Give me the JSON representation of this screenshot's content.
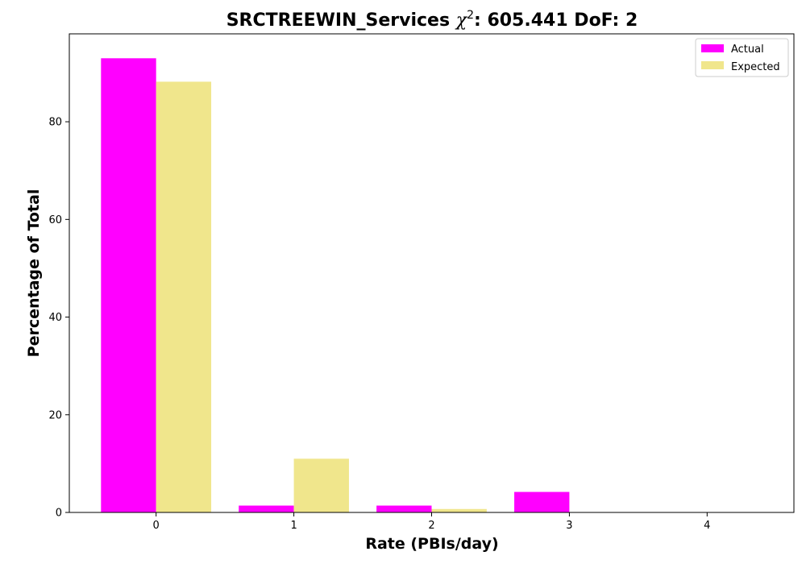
{
  "chart_data": {
    "type": "bar",
    "title_main": "SRCTREEWIN_Services ",
    "title_chi": "χ",
    "title_sup": "2",
    "title_rest": ": 605.441 DoF: 2",
    "xlabel": "Rate (PBIs/day)",
    "ylabel": "Percentage of Total",
    "categories": [
      "0",
      "1",
      "2",
      "3",
      "4"
    ],
    "x": [
      0,
      1,
      2,
      3,
      4
    ],
    "ylim": [
      0,
      98
    ],
    "yticks": [
      0,
      20,
      40,
      60,
      80
    ],
    "grid": false,
    "legend_position": "top-right",
    "series": [
      {
        "name": "Actual",
        "color": "#ff00ff",
        "values": [
          93.0,
          1.4,
          1.4,
          4.2,
          0
        ]
      },
      {
        "name": "Expected",
        "color": "#f0e68c",
        "values": [
          88.2,
          11.0,
          0.7,
          0.04,
          0.0
        ]
      }
    ]
  }
}
